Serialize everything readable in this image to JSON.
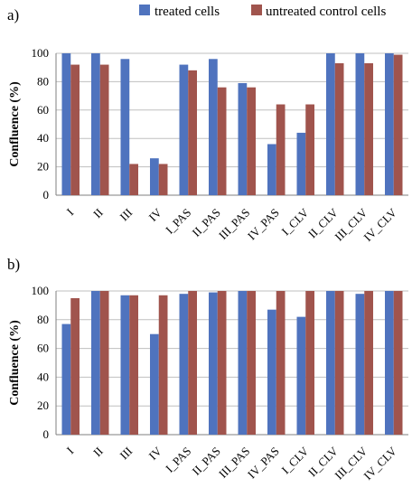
{
  "legend": [
    {
      "label": "treated cells",
      "color": "#4F73BE"
    },
    {
      "label": "untreated control cells",
      "color": "#A0544D"
    }
  ],
  "chart_data": [
    {
      "type": "bar",
      "panel_label": "a)",
      "ylabel": "Confluence (%)",
      "ylim": [
        0,
        100
      ],
      "yticks": [
        0,
        20,
        40,
        60,
        80,
        100
      ],
      "grid": true,
      "categories": [
        "I",
        "II",
        "III",
        "IV",
        "I_PAS",
        "II_PAS",
        "III_PAS",
        "IV_PAS",
        "I_CLV",
        "II_CLV",
        "III_CLV",
        "IV_CLV"
      ],
      "series": [
        {
          "name": "treated cells",
          "values": [
            100,
            100,
            96,
            26,
            92,
            96,
            79,
            36,
            44,
            100,
            100,
            100
          ]
        },
        {
          "name": "untreated control cells",
          "values": [
            92,
            92,
            22,
            22,
            88,
            76,
            76,
            64,
            64,
            93,
            93,
            99
          ]
        }
      ]
    },
    {
      "type": "bar",
      "panel_label": "b)",
      "ylabel": "Confluence (%)",
      "ylim": [
        0,
        100
      ],
      "yticks": [
        0,
        20,
        40,
        60,
        80,
        100
      ],
      "grid": true,
      "categories": [
        "I",
        "II",
        "III",
        "IV",
        "I_PAS",
        "II_PAS",
        "III_PAS",
        "IV_PAS",
        "I_CLV",
        "II_CLV",
        "III_CLV",
        "IV_CLV"
      ],
      "series": [
        {
          "name": "treated cells",
          "values": [
            77,
            100,
            97,
            70,
            98,
            99,
            100,
            87,
            82,
            100,
            98,
            100
          ]
        },
        {
          "name": "untreated control cells",
          "values": [
            95,
            100,
            97,
            97,
            100,
            100,
            100,
            100,
            100,
            100,
            100,
            100
          ]
        }
      ]
    }
  ]
}
